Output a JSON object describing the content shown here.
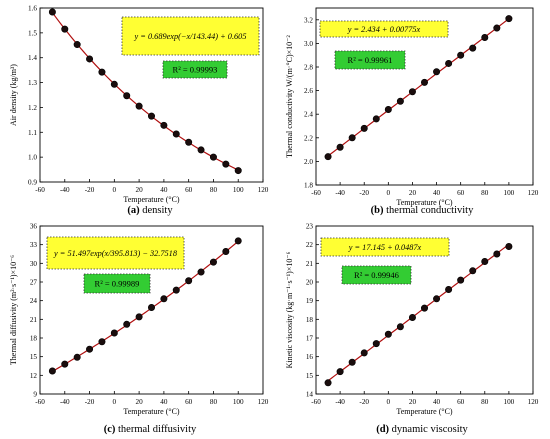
{
  "colors": {
    "line": "#b01010",
    "marker_fill": "#1a0d0d",
    "eq_box": "#ffff33",
    "r2_box": "#33cc33",
    "axis": "#000000"
  },
  "chart_data": [
    {
      "id": "a",
      "type": "scatter",
      "caption_tag": "(a)",
      "caption_text": " density",
      "xlabel": "Temperature (°C)",
      "ylabel": "Air density (kg/m³)",
      "xlim": [
        -60,
        120
      ],
      "ylim": [
        0.9,
        1.6
      ],
      "xticks": [
        -60,
        -40,
        -20,
        0,
        20,
        40,
        60,
        80,
        100,
        120
      ],
      "yticks": [
        0.9,
        1.0,
        1.1,
        1.2,
        1.3,
        1.4,
        1.5,
        1.6
      ],
      "y_decimals": 1,
      "x": [
        -50,
        -40,
        -30,
        -20,
        -10,
        0,
        10,
        20,
        30,
        40,
        50,
        60,
        70,
        80,
        90,
        100
      ],
      "y": [
        1.584,
        1.515,
        1.453,
        1.395,
        1.342,
        1.293,
        1.247,
        1.205,
        1.165,
        1.128,
        1.093,
        1.06,
        1.029,
        1.0,
        0.972,
        0.946
      ],
      "fit": {
        "model": "exp",
        "a": 0.689,
        "b": -143.44,
        "c": 0.605
      },
      "equation": "y = 0.689exp(−x/143.44) + 0.605",
      "r2": "R² = 0.99993"
    },
    {
      "id": "b",
      "type": "scatter",
      "caption_tag": "(b)",
      "caption_text": " thermal conductivity",
      "xlabel": "Temperature (°C)",
      "ylabel": "Thermal conductivity W/(m·°C)×10⁻²",
      "xlim": [
        -60,
        120
      ],
      "ylim": [
        1.8,
        3.3
      ],
      "xticks": [
        -60,
        -40,
        -20,
        0,
        20,
        40,
        60,
        80,
        100,
        120
      ],
      "yticks": [
        1.8,
        2.0,
        2.2,
        2.4,
        2.6,
        2.8,
        3.0,
        3.2
      ],
      "y_decimals": 1,
      "x": [
        -50,
        -40,
        -30,
        -20,
        -10,
        0,
        10,
        20,
        30,
        40,
        50,
        60,
        70,
        80,
        90,
        100
      ],
      "y": [
        2.04,
        2.12,
        2.2,
        2.28,
        2.36,
        2.44,
        2.51,
        2.59,
        2.67,
        2.76,
        2.83,
        2.9,
        2.96,
        3.05,
        3.13,
        3.21
      ],
      "fit": {
        "model": "linear",
        "a": 2.434,
        "b": 0.00775
      },
      "equation": "y = 2.434 + 0.00775x",
      "r2": "R² = 0.99961"
    },
    {
      "id": "c",
      "type": "scatter",
      "caption_tag": "(c)",
      "caption_text": " thermal diffusivity",
      "xlabel": "Temperature (°C)",
      "ylabel": "Thermal diffusivity (m²·s⁻¹)×10⁻⁶",
      "xlim": [
        -60,
        120
      ],
      "ylim": [
        9,
        36
      ],
      "xticks": [
        -60,
        -40,
        -20,
        0,
        20,
        40,
        60,
        80,
        100,
        120
      ],
      "yticks": [
        9,
        12,
        15,
        18,
        21,
        24,
        27,
        30,
        33,
        36
      ],
      "y_decimals": 0,
      "x": [
        -50,
        -40,
        -30,
        -20,
        -10,
        0,
        10,
        20,
        30,
        40,
        50,
        60,
        70,
        80,
        90,
        100
      ],
      "y": [
        12.7,
        13.8,
        14.9,
        16.2,
        17.4,
        18.8,
        20.2,
        21.4,
        22.9,
        24.3,
        25.7,
        27.2,
        28.6,
        30.2,
        31.9,
        33.6
      ],
      "fit": {
        "model": "exp",
        "a": 51.497,
        "b": 395.813,
        "c": -32.7518
      },
      "equation": "y = 51.497exp(x/395.813) − 32.7518",
      "r2": "R² = 0.99989"
    },
    {
      "id": "d",
      "type": "scatter",
      "caption_tag": "(d)",
      "caption_text": " dynamic viscosity",
      "xlabel": "Temperature (°C)",
      "ylabel": "Kinetic viscosity (kg·m⁻¹·s⁻¹)×10⁻⁶",
      "xlim": [
        -60,
        120
      ],
      "ylim": [
        14,
        23
      ],
      "xticks": [
        -60,
        -40,
        -20,
        0,
        20,
        40,
        60,
        80,
        100,
        120
      ],
      "yticks": [
        14,
        15,
        16,
        17,
        18,
        19,
        20,
        21,
        22,
        23
      ],
      "y_decimals": 0,
      "x": [
        -50,
        -40,
        -30,
        -20,
        -10,
        0,
        10,
        20,
        30,
        40,
        50,
        60,
        70,
        80,
        90,
        100
      ],
      "y": [
        14.6,
        15.2,
        15.7,
        16.2,
        16.7,
        17.2,
        17.6,
        18.1,
        18.6,
        19.1,
        19.6,
        20.1,
        20.6,
        21.1,
        21.5,
        21.9
      ],
      "fit": {
        "model": "linear",
        "a": 17.145,
        "b": 0.0487
      },
      "equation": "y = 17.145 + 0.0487x",
      "r2": "R² = 0.99946"
    }
  ]
}
